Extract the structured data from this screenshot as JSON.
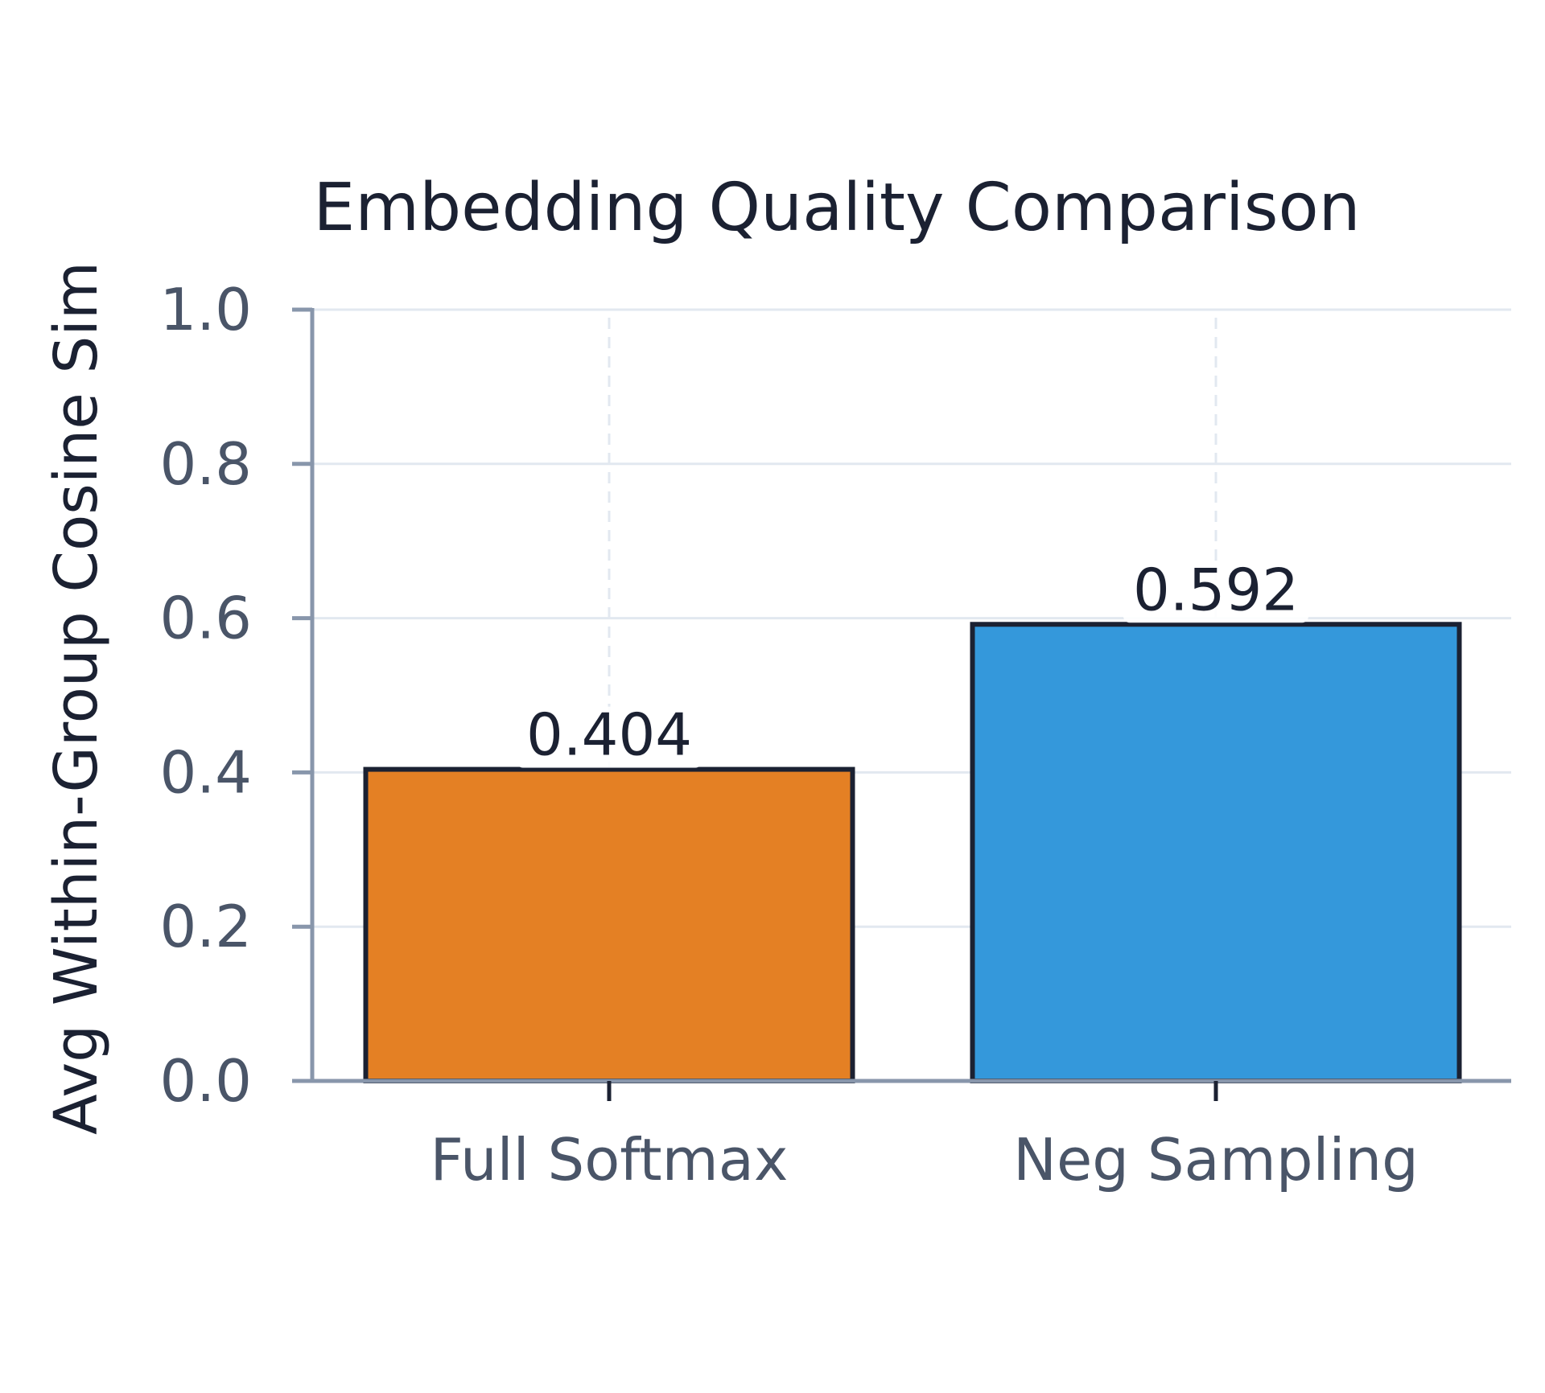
{
  "chart_data": {
    "type": "bar",
    "title": "Embedding Quality Comparison",
    "xlabel": "",
    "ylabel": "Avg Within-Group Cosine Sim",
    "categories": [
      "Full Softmax",
      "Neg Sampling"
    ],
    "values": [
      0.404,
      0.592
    ],
    "value_labels": [
      "0.404",
      "0.592"
    ],
    "bar_colors": [
      "#e48024",
      "#3498db"
    ],
    "ylim": [
      0,
      1.0
    ],
    "yticks": [
      0.0,
      0.2,
      0.4,
      0.6,
      0.8,
      1.0
    ],
    "ytick_labels": [
      "0.0",
      "0.2",
      "0.4",
      "0.6",
      "0.8",
      "1.0"
    ],
    "grid": true,
    "legend": "none"
  },
  "colors": {
    "title": "#1b2132",
    "tick_text": "#4a5568",
    "axis": "#8896ab",
    "grid": "#e2e8f0",
    "bar_edge": "#1b2132",
    "value_text": "#1b2132"
  }
}
